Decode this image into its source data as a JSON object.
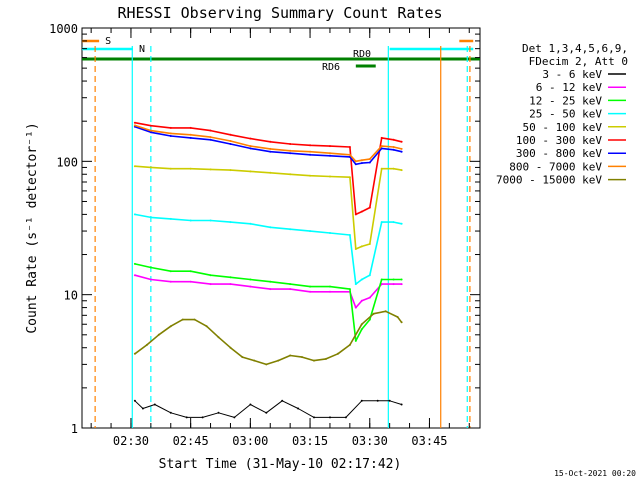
{
  "chart_data": {
    "type": "line",
    "title": "RHESSI Observing Summary Count Rates",
    "xlabel": "Start Time (31-May-10 02:17:42)",
    "ylabel": "Count Rate (s⁻¹ detector⁻¹)",
    "x_scale": "time",
    "y_scale": "log",
    "xlim": [
      "02:17:42",
      "03:57:42"
    ],
    "ylim": [
      1,
      1000
    ],
    "x_ticks": [
      "02:30",
      "02:45",
      "03:00",
      "03:15",
      "03:30",
      "03:45"
    ],
    "y_ticks": [
      1,
      10,
      100,
      1000
    ],
    "y_tick_labels": [
      "1",
      "10",
      "100",
      "1000"
    ],
    "legend_header": [
      "Det 1,3,4,5,6,9,",
      "FDecim 2, Att 0"
    ],
    "legend_placement": "right",
    "series": [
      {
        "name": "3 - 6 keV",
        "color": "#000000",
        "x": [
          "02:31:00",
          "02:33:00",
          "02:36:00",
          "02:40:00",
          "02:44:00",
          "02:48:00",
          "02:52:00",
          "02:56:00",
          "03:00:00",
          "03:04:00",
          "03:08:00",
          "03:12:00",
          "03:16:00",
          "03:20:00",
          "03:24:00",
          "03:28:00",
          "03:32:00",
          "03:35:00",
          "03:38:00"
        ],
        "y": [
          1.6,
          1.4,
          1.5,
          1.3,
          1.2,
          1.2,
          1.3,
          1.2,
          1.5,
          1.3,
          1.6,
          1.4,
          1.2,
          1.2,
          1.2,
          1.6,
          1.6,
          1.6,
          1.5
        ]
      },
      {
        "name": "6 - 12 keV",
        "color": "#ff00ff",
        "x": [
          "02:31:00",
          "02:35:00",
          "02:40:00",
          "02:45:00",
          "02:50:00",
          "02:55:00",
          "03:00:00",
          "03:05:00",
          "03:10:00",
          "03:15:00",
          "03:20:00",
          "03:25:00",
          "03:26:30",
          "03:28:00",
          "03:30:00",
          "03:33:00",
          "03:36:00",
          "03:38:00"
        ],
        "y": [
          14,
          13,
          12.5,
          12.5,
          12,
          12,
          11.5,
          11,
          11,
          10.5,
          10.5,
          10.5,
          8,
          9,
          9.5,
          12,
          12,
          12
        ]
      },
      {
        "name": "12 - 25 keV",
        "color": "#00ff00",
        "x": [
          "02:31:00",
          "02:35:00",
          "02:40:00",
          "02:45:00",
          "02:50:00",
          "02:55:00",
          "03:00:00",
          "03:05:00",
          "03:10:00",
          "03:15:00",
          "03:20:00",
          "03:25:00",
          "03:26:30",
          "03:28:00",
          "03:30:00",
          "03:33:00",
          "03:36:00",
          "03:38:00"
        ],
        "y": [
          17,
          16,
          15,
          15,
          14,
          13.5,
          13,
          12.5,
          12,
          11.5,
          11.5,
          11,
          4.5,
          5.5,
          6.5,
          13,
          13,
          13
        ]
      },
      {
        "name": "25 - 50 keV",
        "color": "#00ffff",
        "x": [
          "02:31:00",
          "02:35:00",
          "02:40:00",
          "02:45:00",
          "02:50:00",
          "02:55:00",
          "03:00:00",
          "03:05:00",
          "03:10:00",
          "03:15:00",
          "03:20:00",
          "03:25:00",
          "03:26:30",
          "03:28:00",
          "03:30:00",
          "03:33:00",
          "03:36:00",
          "03:38:00"
        ],
        "y": [
          40,
          38,
          37,
          36,
          36,
          35,
          34,
          32,
          31,
          30,
          29,
          28,
          12,
          13,
          14,
          35,
          35,
          34
        ]
      },
      {
        "name": "50 - 100 keV",
        "color": "#cccc00",
        "x": [
          "02:31:00",
          "02:35:00",
          "02:40:00",
          "02:45:00",
          "02:50:00",
          "02:55:00",
          "03:00:00",
          "03:05:00",
          "03:10:00",
          "03:15:00",
          "03:20:00",
          "03:25:00",
          "03:26:30",
          "03:28:00",
          "03:30:00",
          "03:33:00",
          "03:36:00",
          "03:38:00"
        ],
        "y": [
          92,
          90,
          88,
          88,
          87,
          86,
          84,
          82,
          80,
          78,
          77,
          76,
          22,
          23,
          24,
          88,
          88,
          86
        ]
      },
      {
        "name": "100 - 300 keV",
        "color": "#ff0000",
        "x": [
          "02:31:00",
          "02:35:00",
          "02:40:00",
          "02:45:00",
          "02:50:00",
          "02:55:00",
          "03:00:00",
          "03:05:00",
          "03:10:00",
          "03:15:00",
          "03:20:00",
          "03:25:00",
          "03:26:30",
          "03:28:00",
          "03:30:00",
          "03:33:00",
          "03:36:00",
          "03:38:00"
        ],
        "y": [
          195,
          185,
          178,
          178,
          170,
          158,
          148,
          140,
          135,
          132,
          130,
          128,
          40,
          42,
          45,
          150,
          145,
          140
        ]
      },
      {
        "name": "300 - 800 keV",
        "color": "#0000ff",
        "x": [
          "02:31:00",
          "02:35:00",
          "02:40:00",
          "02:45:00",
          "02:50:00",
          "02:55:00",
          "03:00:00",
          "03:05:00",
          "03:10:00",
          "03:15:00",
          "03:20:00",
          "03:25:00",
          "03:26:30",
          "03:28:00",
          "03:30:00",
          "03:33:00",
          "03:36:00",
          "03:38:00"
        ],
        "y": [
          182,
          165,
          155,
          150,
          145,
          135,
          125,
          118,
          115,
          112,
          110,
          108,
          95,
          97,
          98,
          125,
          122,
          118
        ]
      },
      {
        "name": "800 - 7000 keV",
        "color": "#ff8000",
        "x": [
          "02:31:00",
          "02:35:00",
          "02:40:00",
          "02:45:00",
          "02:50:00",
          "02:55:00",
          "03:00:00",
          "03:05:00",
          "03:10:00",
          "03:15:00",
          "03:20:00",
          "03:25:00",
          "03:26:30",
          "03:28:00",
          "03:30:00",
          "03:33:00",
          "03:36:00",
          "03:38:00"
        ],
        "y": [
          186,
          170,
          162,
          158,
          152,
          142,
          130,
          124,
          120,
          118,
          115,
          112,
          100,
          102,
          104,
          130,
          128,
          124
        ]
      },
      {
        "name": "7000 - 15000 keV",
        "color": "#808000",
        "x": [
          "02:31:00",
          "02:34:00",
          "02:37:00",
          "02:40:00",
          "02:43:00",
          "02:46:00",
          "02:49:00",
          "02:52:00",
          "02:55:00",
          "02:58:00",
          "03:01:00",
          "03:04:00",
          "03:07:00",
          "03:10:00",
          "03:13:00",
          "03:16:00",
          "03:19:00",
          "03:22:00",
          "03:25:00",
          "03:28:00",
          "03:31:00",
          "03:34:00",
          "03:37:00",
          "03:38:00"
        ],
        "y": [
          3.6,
          4.2,
          5.0,
          5.8,
          6.5,
          6.5,
          5.8,
          4.8,
          4.0,
          3.4,
          3.2,
          3.0,
          3.2,
          3.5,
          3.4,
          3.2,
          3.3,
          3.6,
          4.2,
          6.0,
          7.2,
          7.5,
          6.8,
          6.2
        ]
      }
    ],
    "flags": [
      {
        "label": "S",
        "color": "#ff8000",
        "segments": [
          [
            "02:17:42",
            "02:22:00"
          ],
          [
            "03:52:30",
            "03:56:00"
          ]
        ]
      },
      {
        "label": "N",
        "color": "#00ffff",
        "segments": [
          [
            "02:17:42",
            "02:30:30"
          ],
          [
            "03:35:00",
            "03:56:00"
          ]
        ]
      },
      {
        "label": "RD0",
        "color": "#008000",
        "segments": [
          [
            "02:17:42",
            "03:57:42"
          ]
        ]
      },
      {
        "label": "RD6",
        "color": "#008000",
        "segments": [
          [
            "03:26:30",
            "03:31:30"
          ]
        ]
      }
    ],
    "vertical_markers": [
      {
        "x": "02:21:00",
        "color": "#ff8000",
        "style": "dashed"
      },
      {
        "x": "02:35:00",
        "color": "#00ffff",
        "style": "dashed"
      },
      {
        "x": "02:30:20",
        "color": "#00ffff",
        "style": "solid"
      },
      {
        "x": "03:34:40",
        "color": "#00ffff",
        "style": "solid"
      },
      {
        "x": "03:47:50",
        "color": "#ff8000",
        "style": "solid"
      },
      {
        "x": "03:54:30",
        "color": "#00ffff",
        "style": "dashed"
      },
      {
        "x": "03:55:10",
        "color": "#ff8000",
        "style": "dashed"
      }
    ],
    "footer": "15-Oct-2021 00:20"
  }
}
